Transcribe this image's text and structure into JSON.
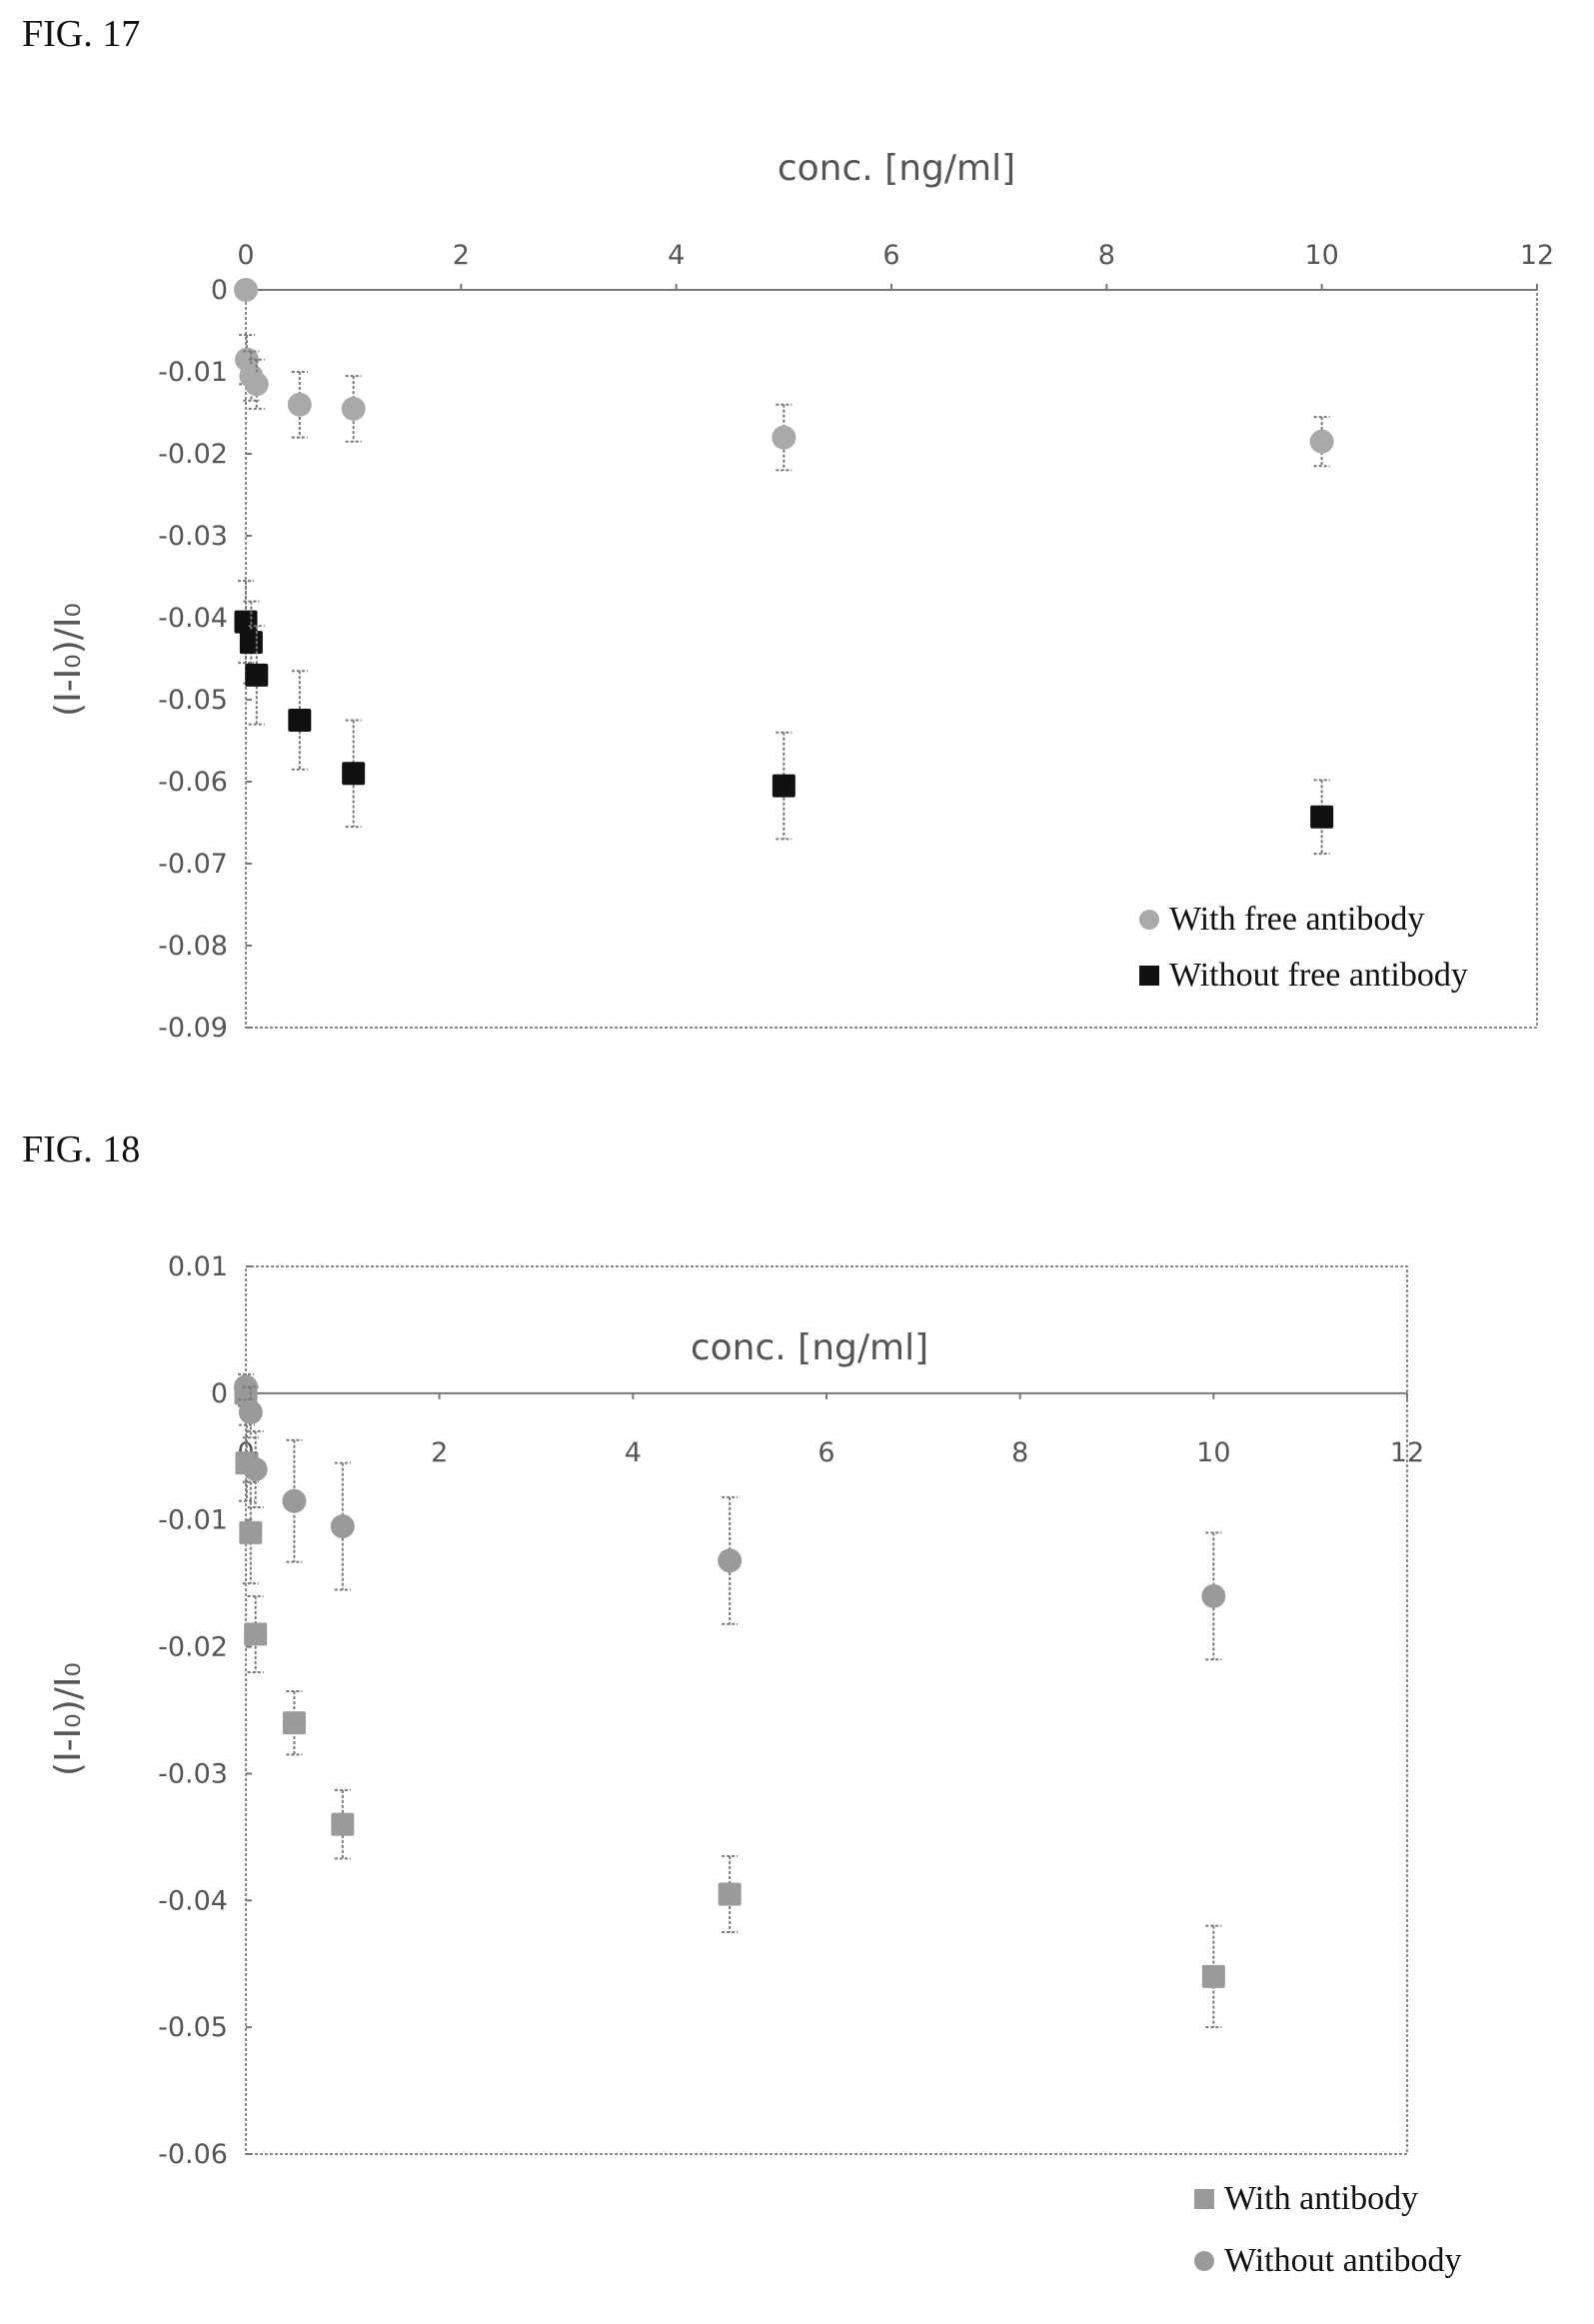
{
  "fig17": {
    "label": "FIG. 17",
    "chart_data": {
      "type": "scatter",
      "xlabel": "conc. [ng/ml]",
      "ylabel": "(I-I₀)/I₀",
      "xlim": [
        0,
        12
      ],
      "ylim": [
        -0.09,
        0
      ],
      "x_ticks": [
        "0",
        "2",
        "4",
        "6",
        "8",
        "10",
        "12"
      ],
      "y_ticks": [
        "0",
        "-0.01",
        "-0.02",
        "-0.03",
        "-0.04",
        "-0.05",
        "-0.06",
        "-0.07",
        "-0.08",
        "-0.09"
      ],
      "x_axis_position": "top",
      "grid": false,
      "legend_position": "bottom-right",
      "series": [
        {
          "name": "With free antibody",
          "marker": "circle",
          "color": "#a9a9a9",
          "x": [
            0,
            0.01,
            0.05,
            0.1,
            0.5,
            1,
            5,
            10
          ],
          "y": [
            0,
            -0.0085,
            -0.0105,
            -0.0115,
            -0.014,
            -0.0145,
            -0.018,
            -0.0185
          ],
          "err": [
            0.0005,
            0.003,
            0.003,
            0.003,
            0.004,
            0.004,
            0.004,
            0.003
          ]
        },
        {
          "name": "Without free antibody",
          "marker": "square",
          "color": "#111111",
          "x": [
            0,
            0.05,
            0.1,
            0.5,
            1,
            5,
            10
          ],
          "y": [
            -0.0405,
            -0.043,
            -0.047,
            -0.0525,
            -0.059,
            -0.0605,
            -0.0643
          ],
          "err": [
            0.005,
            0.005,
            0.006,
            0.006,
            0.0065,
            0.0065,
            0.0045
          ]
        }
      ]
    }
  },
  "fig18": {
    "label": "FIG. 18",
    "chart_data": {
      "type": "scatter",
      "xlabel": "conc. [ng/ml]",
      "ylabel": "(I-I₀)/I₀",
      "xlim": [
        0,
        12
      ],
      "ylim": [
        -0.06,
        0.01
      ],
      "x_ticks": [
        "0",
        "2",
        "4",
        "6",
        "8",
        "10",
        "12"
      ],
      "y_ticks": [
        "0.01",
        "0",
        "-0.01",
        "-0.02",
        "-0.03",
        "-0.04",
        "-0.05",
        "-0.06"
      ],
      "x_axis_position": "y=0",
      "grid": false,
      "legend_position": "bottom-right (outside)",
      "series": [
        {
          "name": "With antibody",
          "marker": "square",
          "color": "#9a9a9a",
          "x": [
            0,
            0.01,
            0.05,
            0.1,
            0.5,
            1,
            5,
            10
          ],
          "y": [
            0,
            -0.0055,
            -0.011,
            -0.019,
            -0.026,
            -0.034,
            -0.0395,
            -0.046
          ],
          "err": [
            0.001,
            0.003,
            0.004,
            0.003,
            0.0025,
            0.0027,
            0.003,
            0.004
          ]
        },
        {
          "name": "Without antibody",
          "marker": "circle",
          "color": "#9a9a9a",
          "x": [
            0,
            0.05,
            0.1,
            0.5,
            1,
            5,
            10
          ],
          "y": [
            0.0005,
            -0.0015,
            -0.006,
            -0.0085,
            -0.0105,
            -0.0132,
            -0.016
          ],
          "err": [
            0.001,
            0.002,
            0.003,
            0.0048,
            0.005,
            0.005,
            0.005
          ]
        }
      ]
    }
  }
}
